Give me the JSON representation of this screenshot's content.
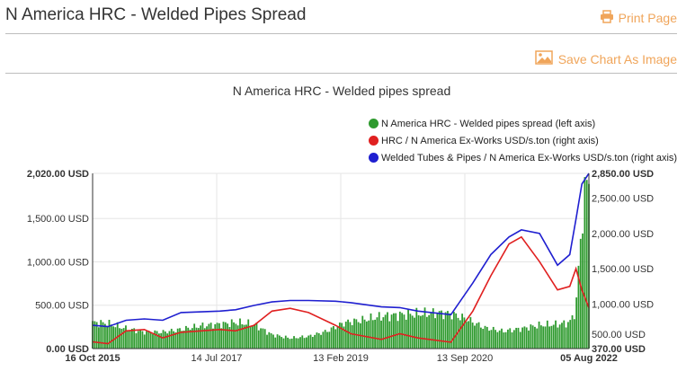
{
  "header": {
    "title": "N America HRC - Welded Pipes Spread",
    "print_label": "Print Page",
    "save_label": "Save Chart As Image"
  },
  "icons": {
    "print": "printer-icon",
    "save": "image-icon"
  },
  "colors": {
    "accent": "#f0a55a",
    "spread": "#2e9a2e",
    "hrc": "#e02020",
    "welded": "#1f1fd0"
  },
  "chart_data": {
    "type": "bar+line",
    "title": "N America HRC - Welded pipes spread",
    "legend_position": "top-right",
    "x_ticks": [
      "16 Oct 2015",
      "14 Jul 2017",
      "13 Feb 2019",
      "13 Sep 2020",
      "05 Aug 2022"
    ],
    "y_left": {
      "ticks": [
        "0.00 USD",
        "500.00 USD",
        "1,000.00 USD",
        "1,500.00 USD",
        "2,020.00 USD"
      ],
      "range": [
        0,
        2020
      ]
    },
    "y_right": {
      "ticks": [
        "370.00 USD",
        "500.00 USD",
        "1,000.00 USD",
        "1,500.00 USD",
        "2,000.00 USD",
        "2,500.00 USD",
        "2,850.00 USD"
      ],
      "range": [
        370,
        2850
      ]
    },
    "series": [
      {
        "name": "N America HRC - Welded pipes spread (left axis)",
        "type": "bar",
        "axis": "left",
        "points": [
          [
            "2015-10-16",
            300
          ],
          [
            "2016-01-01",
            290
          ],
          [
            "2016-04-01",
            230
          ],
          [
            "2016-07-01",
            190
          ],
          [
            "2016-10-01",
            190
          ],
          [
            "2017-01-01",
            220
          ],
          [
            "2017-04-01",
            260
          ],
          [
            "2017-07-14",
            280
          ],
          [
            "2017-10-01",
            300
          ],
          [
            "2018-01-01",
            280
          ],
          [
            "2018-04-01",
            160
          ],
          [
            "2018-07-01",
            120
          ],
          [
            "2018-10-01",
            140
          ],
          [
            "2019-01-01",
            200
          ],
          [
            "2019-02-13",
            250
          ],
          [
            "2019-04-01",
            300
          ],
          [
            "2019-07-01",
            330
          ],
          [
            "2019-10-01",
            370
          ],
          [
            "2020-01-01",
            390
          ],
          [
            "2020-04-01",
            400
          ],
          [
            "2020-07-01",
            410
          ],
          [
            "2020-09-13",
            400
          ],
          [
            "2020-12-01",
            340
          ],
          [
            "2021-03-01",
            240
          ],
          [
            "2021-06-01",
            200
          ],
          [
            "2021-09-01",
            230
          ],
          [
            "2021-12-01",
            270
          ],
          [
            "2022-03-01",
            280
          ],
          [
            "2022-05-01",
            300
          ],
          [
            "2022-06-01",
            450
          ],
          [
            "2022-07-01",
            1500
          ],
          [
            "2022-07-25",
            1900
          ],
          [
            "2022-08-05",
            2000
          ]
        ]
      },
      {
        "name": "HRC / N America Ex-Works USD/s.ton (right axis)",
        "type": "line",
        "axis": "right",
        "points": [
          [
            "2015-10-16",
            465
          ],
          [
            "2016-01-01",
            440
          ],
          [
            "2016-04-01",
            620
          ],
          [
            "2016-07-01",
            640
          ],
          [
            "2016-10-01",
            520
          ],
          [
            "2017-01-01",
            600
          ],
          [
            "2017-07-14",
            640
          ],
          [
            "2017-10-01",
            620
          ],
          [
            "2018-01-01",
            700
          ],
          [
            "2018-04-01",
            900
          ],
          [
            "2018-07-01",
            940
          ],
          [
            "2018-10-01",
            880
          ],
          [
            "2019-02-13",
            700
          ],
          [
            "2019-05-01",
            580
          ],
          [
            "2019-10-01",
            500
          ],
          [
            "2020-01-01",
            580
          ],
          [
            "2020-04-01",
            520
          ],
          [
            "2020-09-13",
            460
          ],
          [
            "2021-01-01",
            900
          ],
          [
            "2021-04-01",
            1400
          ],
          [
            "2021-07-01",
            1850
          ],
          [
            "2021-09-01",
            1950
          ],
          [
            "2021-12-01",
            1600
          ],
          [
            "2022-03-01",
            1200
          ],
          [
            "2022-05-01",
            1250
          ],
          [
            "2022-06-01",
            1500
          ],
          [
            "2022-07-01",
            1200
          ],
          [
            "2022-08-05",
            950
          ]
        ]
      },
      {
        "name": "Welded Tubes & Pipes / N America Ex-Works USD/s.ton (right axis)",
        "type": "line",
        "axis": "right",
        "points": [
          [
            "2015-10-16",
            700
          ],
          [
            "2016-01-01",
            680
          ],
          [
            "2016-04-01",
            770
          ],
          [
            "2016-07-01",
            790
          ],
          [
            "2016-10-01",
            770
          ],
          [
            "2017-01-01",
            880
          ],
          [
            "2017-07-14",
            900
          ],
          [
            "2017-10-01",
            920
          ],
          [
            "2018-01-01",
            980
          ],
          [
            "2018-04-01",
            1030
          ],
          [
            "2018-07-01",
            1050
          ],
          [
            "2018-10-01",
            1050
          ],
          [
            "2019-02-13",
            1040
          ],
          [
            "2019-05-01",
            1020
          ],
          [
            "2019-10-01",
            960
          ],
          [
            "2020-01-01",
            950
          ],
          [
            "2020-04-01",
            900
          ],
          [
            "2020-09-13",
            850
          ],
          [
            "2021-01-01",
            1300
          ],
          [
            "2021-04-01",
            1700
          ],
          [
            "2021-07-01",
            1950
          ],
          [
            "2021-09-01",
            2050
          ],
          [
            "2021-12-01",
            2000
          ],
          [
            "2022-03-01",
            1550
          ],
          [
            "2022-05-01",
            1700
          ],
          [
            "2022-06-01",
            2200
          ],
          [
            "2022-07-01",
            2700
          ],
          [
            "2022-08-05",
            2850
          ]
        ]
      }
    ]
  }
}
